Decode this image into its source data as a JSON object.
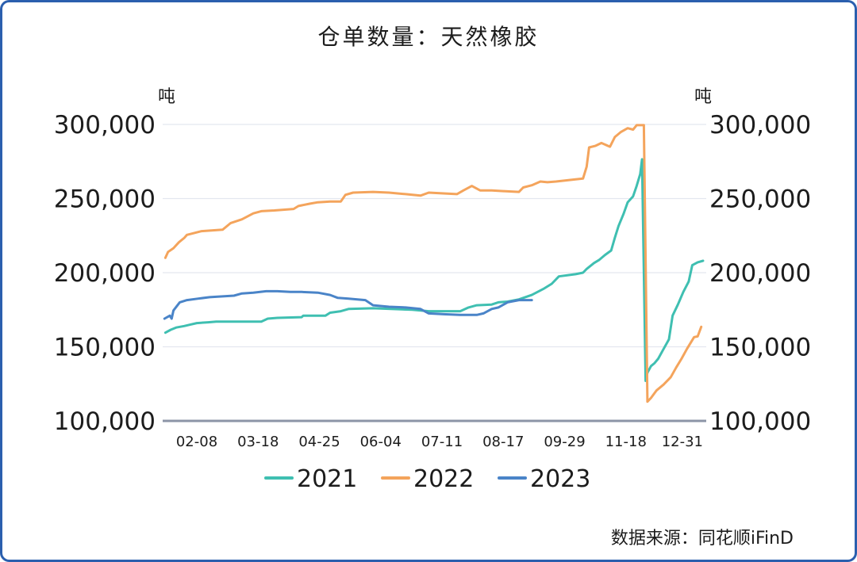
{
  "source": "数据来源：同花顺iFinD",
  "chart_data": {
    "type": "line",
    "title": "仓单数量：天然橡胶",
    "y_unit_left": "吨",
    "y_unit_right": "吨",
    "ylim": [
      100000,
      300000
    ],
    "y_ticks": [
      100000,
      150000,
      200000,
      250000,
      300000
    ],
    "y_tick_labels": [
      "100,000",
      "150,000",
      "200,000",
      "250,000",
      "300,000"
    ],
    "xlim": [
      "01-01",
      "12-31"
    ],
    "x_ticks": [
      "02-08",
      "03-18",
      "04-25",
      "06-04",
      "07-11",
      "08-17",
      "09-29",
      "11-18",
      "12-31"
    ],
    "grid": true,
    "legend_position": "bottom",
    "series": [
      {
        "name": "2021",
        "color": "#3fbfb1",
        "points": [
          [
            "01-04",
            159500
          ],
          [
            "01-10",
            161500
          ],
          [
            "01-16",
            163000
          ],
          [
            "01-25",
            164000
          ],
          [
            "02-01",
            165000
          ],
          [
            "02-08",
            166000
          ],
          [
            "02-15",
            166500
          ],
          [
            "02-20",
            167000
          ],
          [
            "03-01",
            167000
          ],
          [
            "03-20",
            167000
          ],
          [
            "03-24",
            169000
          ],
          [
            "03-30",
            169500
          ],
          [
            "04-14",
            170000
          ],
          [
            "04-15",
            171000
          ],
          [
            "04-29",
            171000
          ],
          [
            "05-02",
            173000
          ],
          [
            "05-09",
            174000
          ],
          [
            "05-14",
            175500
          ],
          [
            "05-30",
            176000
          ],
          [
            "06-23",
            175000
          ],
          [
            "07-03",
            174000
          ],
          [
            "07-22",
            174000
          ],
          [
            "07-27",
            176500
          ],
          [
            "08-01",
            178000
          ],
          [
            "08-10",
            178500
          ],
          [
            "08-14",
            180000
          ],
          [
            "08-20",
            180500
          ],
          [
            "08-28",
            182000
          ],
          [
            "09-06",
            185000
          ],
          [
            "09-14",
            189000
          ],
          [
            "09-20",
            192500
          ],
          [
            "09-25",
            197500
          ],
          [
            "10-08",
            199000
          ],
          [
            "10-14",
            200000
          ],
          [
            "10-17",
            202500
          ],
          [
            "10-23",
            206500
          ],
          [
            "10-27",
            208500
          ],
          [
            "11-01",
            212000
          ],
          [
            "11-06",
            215000
          ],
          [
            "11-09",
            223500
          ],
          [
            "11-12",
            231500
          ],
          [
            "11-16",
            239500
          ],
          [
            "11-19",
            247500
          ],
          [
            "11-22",
            251500
          ],
          [
            "11-24",
            258500
          ],
          [
            "11-26",
            266500
          ],
          [
            "11-27",
            276500
          ],
          [
            "11-29",
            127000
          ],
          [
            "11-30",
            132500
          ],
          [
            "12-02",
            137000
          ],
          [
            "12-04",
            139000
          ],
          [
            "12-06",
            142000
          ],
          [
            "12-09",
            148500
          ],
          [
            "12-12",
            155000
          ],
          [
            "12-14",
            171000
          ],
          [
            "12-17",
            178500
          ],
          [
            "12-20",
            187000
          ],
          [
            "12-23",
            194000
          ],
          [
            "12-25",
            205000
          ],
          [
            "12-28",
            207000
          ],
          [
            "12-31",
            208000
          ]
        ]
      },
      {
        "name": "2022",
        "color": "#f4a45c",
        "points": [
          [
            "01-04",
            210000
          ],
          [
            "01-07",
            214000
          ],
          [
            "01-13",
            216500
          ],
          [
            "01-19",
            220500
          ],
          [
            "01-25",
            223500
          ],
          [
            "01-28",
            225500
          ],
          [
            "02-11",
            228000
          ],
          [
            "02-24",
            229000
          ],
          [
            "03-01",
            233500
          ],
          [
            "03-08",
            236000
          ],
          [
            "03-15",
            240000
          ],
          [
            "03-20",
            241500
          ],
          [
            "03-28",
            242000
          ],
          [
            "04-09",
            243000
          ],
          [
            "04-12",
            245000
          ],
          [
            "04-19",
            246500
          ],
          [
            "04-24",
            247500
          ],
          [
            "05-02",
            248000
          ],
          [
            "05-09",
            248000
          ],
          [
            "05-12",
            252500
          ],
          [
            "05-17",
            254000
          ],
          [
            "05-30",
            254500
          ],
          [
            "06-09",
            254000
          ],
          [
            "06-19",
            253000
          ],
          [
            "06-28",
            252000
          ],
          [
            "07-03",
            254000
          ],
          [
            "07-12",
            253500
          ],
          [
            "07-20",
            253000
          ],
          [
            "07-24",
            255500
          ],
          [
            "07-29",
            258500
          ],
          [
            "08-03",
            255500
          ],
          [
            "08-10",
            255500
          ],
          [
            "08-17",
            255000
          ],
          [
            "08-28",
            254500
          ],
          [
            "08-31",
            257500
          ],
          [
            "09-06",
            259000
          ],
          [
            "09-12",
            261500
          ],
          [
            "09-17",
            261000
          ],
          [
            "09-23",
            261500
          ],
          [
            "10-08",
            263000
          ],
          [
            "10-14",
            263500
          ],
          [
            "10-17",
            271500
          ],
          [
            "10-19",
            284500
          ],
          [
            "10-24",
            285500
          ],
          [
            "10-29",
            287500
          ],
          [
            "11-05",
            285000
          ],
          [
            "11-09",
            291500
          ],
          [
            "11-14",
            295000
          ],
          [
            "11-19",
            297500
          ],
          [
            "11-22",
            296500
          ],
          [
            "11-24",
            299500
          ],
          [
            "11-28",
            299500
          ],
          [
            "11-30",
            113000
          ],
          [
            "12-02",
            115500
          ],
          [
            "12-05",
            120500
          ],
          [
            "12-09",
            124500
          ],
          [
            "12-13",
            129500
          ],
          [
            "12-16",
            136000
          ],
          [
            "12-19",
            142000
          ],
          [
            "12-22",
            148500
          ],
          [
            "12-26",
            156500
          ],
          [
            "12-28",
            157000
          ],
          [
            "12-30",
            163500
          ]
        ]
      },
      {
        "name": "2023",
        "color": "#4a84c8",
        "points": [
          [
            "01-03",
            169000
          ],
          [
            "01-09",
            171000
          ],
          [
            "01-11",
            169000
          ],
          [
            "01-13",
            174500
          ],
          [
            "01-20",
            180000
          ],
          [
            "01-28",
            181500
          ],
          [
            "02-09",
            182500
          ],
          [
            "02-16",
            183500
          ],
          [
            "03-03",
            184500
          ],
          [
            "03-08",
            186000
          ],
          [
            "03-15",
            186500
          ],
          [
            "03-23",
            187500
          ],
          [
            "03-30",
            187500
          ],
          [
            "04-07",
            187000
          ],
          [
            "04-14",
            187000
          ],
          [
            "04-24",
            186500
          ],
          [
            "05-02",
            185000
          ],
          [
            "05-07",
            183000
          ],
          [
            "05-14",
            182500
          ],
          [
            "05-25",
            181500
          ],
          [
            "05-30",
            178000
          ],
          [
            "06-09",
            177000
          ],
          [
            "06-19",
            176500
          ],
          [
            "06-28",
            175500
          ],
          [
            "07-03",
            172500
          ],
          [
            "07-12",
            172000
          ],
          [
            "07-22",
            171500
          ],
          [
            "08-01",
            171500
          ],
          [
            "08-05",
            172500
          ],
          [
            "08-10",
            175500
          ],
          [
            "08-14",
            176500
          ],
          [
            "08-20",
            180000
          ],
          [
            "08-28",
            181500
          ],
          [
            "09-06",
            181500
          ]
        ]
      }
    ]
  }
}
